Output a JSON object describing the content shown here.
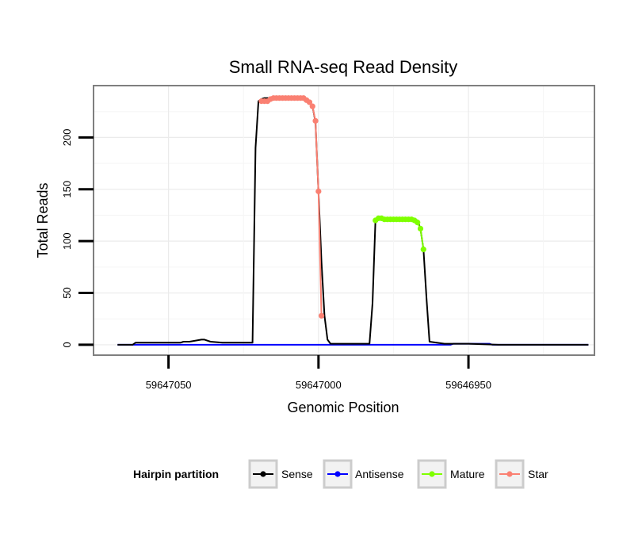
{
  "chart_data": {
    "type": "line",
    "title": "Small RNA-seq Read Density",
    "xlabel": "Genomic Position",
    "ylabel": "Total Reads",
    "x_reversed": true,
    "xlim": [
      59647075,
      59646908
    ],
    "ylim": [
      -10,
      250
    ],
    "xticks": [
      59647050,
      59647000,
      59646950
    ],
    "xtick_labels": [
      "59647050",
      "59647000",
      "59646950"
    ],
    "yticks": [
      0,
      50,
      100,
      150,
      200
    ],
    "ytick_labels": [
      "0",
      "50",
      "100",
      "150",
      "200"
    ],
    "legend": {
      "title": "Hairpin partition",
      "position": "bottom",
      "entries": [
        {
          "name": "Sense",
          "color": "#000000"
        },
        {
          "name": "Antisense",
          "color": "#0000ff"
        },
        {
          "name": "Mature",
          "color": "#7fff00"
        },
        {
          "name": "Star",
          "color": "#fa8072"
        }
      ]
    },
    "series": [
      {
        "name": "Sense",
        "color": "#000000",
        "markers": false,
        "x": [
          59647067,
          59647062,
          59647061,
          59647053,
          59647051,
          59647048,
          59647046,
          59647045,
          59647043,
          59647039,
          59647038,
          59647036,
          59647032,
          59647022,
          59647021,
          59647020,
          59647019,
          59647018,
          59647015,
          59647010,
          59647006,
          59647003,
          59647002,
          59647001,
          59647000,
          59646999,
          59646998,
          59646997,
          59646996,
          59646995,
          59646994,
          59646983,
          59646982,
          59646981,
          59646980,
          59646979,
          59646969,
          59646967,
          59646966,
          59646965,
          59646964,
          59646963,
          59646958,
          59646950,
          59646940,
          59646930,
          59646920,
          59646910
        ],
        "y": [
          0,
          0,
          2,
          2,
          2,
          2,
          2,
          3,
          3,
          5,
          5,
          3,
          2,
          2,
          190,
          235,
          237,
          238,
          238,
          238,
          238,
          235,
          230,
          215,
          148,
          80,
          28,
          5,
          1,
          1,
          1,
          1,
          40,
          120,
          122,
          122,
          122,
          120,
          112,
          92,
          45,
          3,
          1,
          1,
          0,
          0,
          0,
          0
        ]
      },
      {
        "name": "Antisense",
        "color": "#0000ff",
        "markers": false,
        "x": [
          59647067,
          59646956,
          59646955,
          59646943,
          59646942,
          59646910
        ],
        "y": [
          0,
          0,
          1,
          1,
          0,
          0
        ]
      },
      {
        "name": "Mature",
        "color": "#7fff00",
        "markers": true,
        "x": [
          59646981,
          59646980,
          59646979,
          59646978,
          59646977,
          59646976,
          59646975,
          59646974,
          59646973,
          59646972,
          59646971,
          59646970,
          59646969,
          59646968,
          59646967,
          59646966,
          59646965
        ],
        "y": [
          120,
          122,
          122,
          121,
          121,
          121,
          121,
          121,
          121,
          121,
          121,
          121,
          121,
          120,
          118,
          112,
          92
        ]
      },
      {
        "name": "Star",
        "color": "#fa8072",
        "markers": true,
        "x": [
          59647019,
          59647018,
          59647017,
          59647016,
          59647015,
          59647014,
          59647013,
          59647012,
          59647011,
          59647010,
          59647009,
          59647008,
          59647007,
          59647006,
          59647005,
          59647004,
          59647003,
          59647002,
          59647001,
          59647000,
          59646999
        ],
        "y": [
          235,
          235,
          235,
          237,
          238,
          238,
          238,
          238,
          238,
          238,
          238,
          238,
          238,
          238,
          238,
          236,
          234,
          230,
          216,
          148,
          28
        ]
      }
    ]
  }
}
